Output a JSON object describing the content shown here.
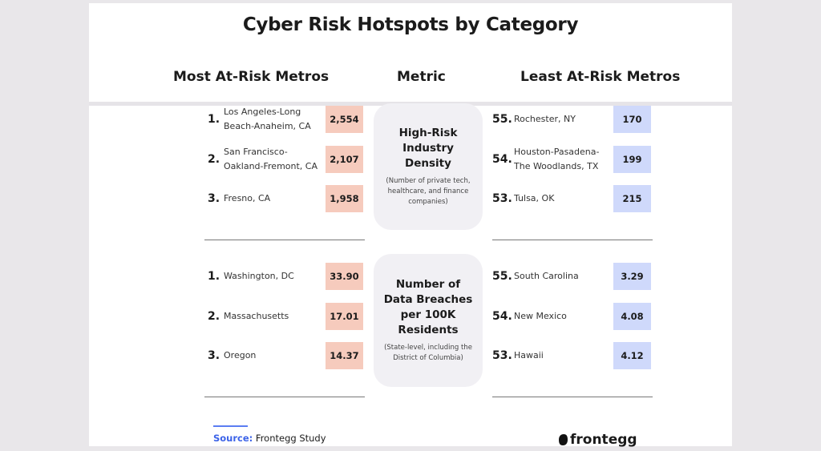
{
  "title": "Cyber Risk Hotspots by Category",
  "columns": {
    "most": "Most At-Risk Metros",
    "metric": "Metric",
    "least": "Least At-Risk Metros"
  },
  "colors": {
    "most_cell": "#f6cbbd",
    "least_cell": "#cfd9fb",
    "metric_panel": "#f1f0f4",
    "source_accent": "#3c63e8"
  },
  "source": {
    "label": "Source:",
    "text": "Frontegg Study"
  },
  "brand": {
    "name": "frontegg",
    "icon": "frontegg-logo-icon"
  },
  "chart_data": {
    "type": "table",
    "sections": [
      {
        "metric": "High-Risk Industry Density",
        "note": "(Number of private tech, healthcare, and finance companies)",
        "most": [
          {
            "rank": "1.",
            "name": "Los Angeles-Long Beach-Anaheim, CA",
            "value": "2,554"
          },
          {
            "rank": "2.",
            "name": "San Francisco-Oakland-Fremont, CA",
            "value": "2,107"
          },
          {
            "rank": "3.",
            "name": "Fresno, CA",
            "value": "1,958"
          }
        ],
        "least": [
          {
            "rank": "55.",
            "name": "Rochester, NY",
            "value": "170"
          },
          {
            "rank": "54.",
            "name": "Houston-Pasadena-The Woodlands, TX",
            "value": "199"
          },
          {
            "rank": "53.",
            "name": "Tulsa, OK",
            "value": "215"
          }
        ]
      },
      {
        "metric": "Number of Data Breaches per 100K Residents",
        "note": "(State-level, including the District of Columbia)",
        "most": [
          {
            "rank": "1.",
            "name": "Washington, DC",
            "value": "33.90"
          },
          {
            "rank": "2.",
            "name": "Massachusetts",
            "value": "17.01"
          },
          {
            "rank": "3.",
            "name": "Oregon",
            "value": "14.37"
          }
        ],
        "least": [
          {
            "rank": "55.",
            "name": "South Carolina",
            "value": "3.29"
          },
          {
            "rank": "54.",
            "name": "New Mexico",
            "value": "4.08"
          },
          {
            "rank": "53.",
            "name": "Hawaii",
            "value": "4.12"
          }
        ]
      }
    ]
  }
}
